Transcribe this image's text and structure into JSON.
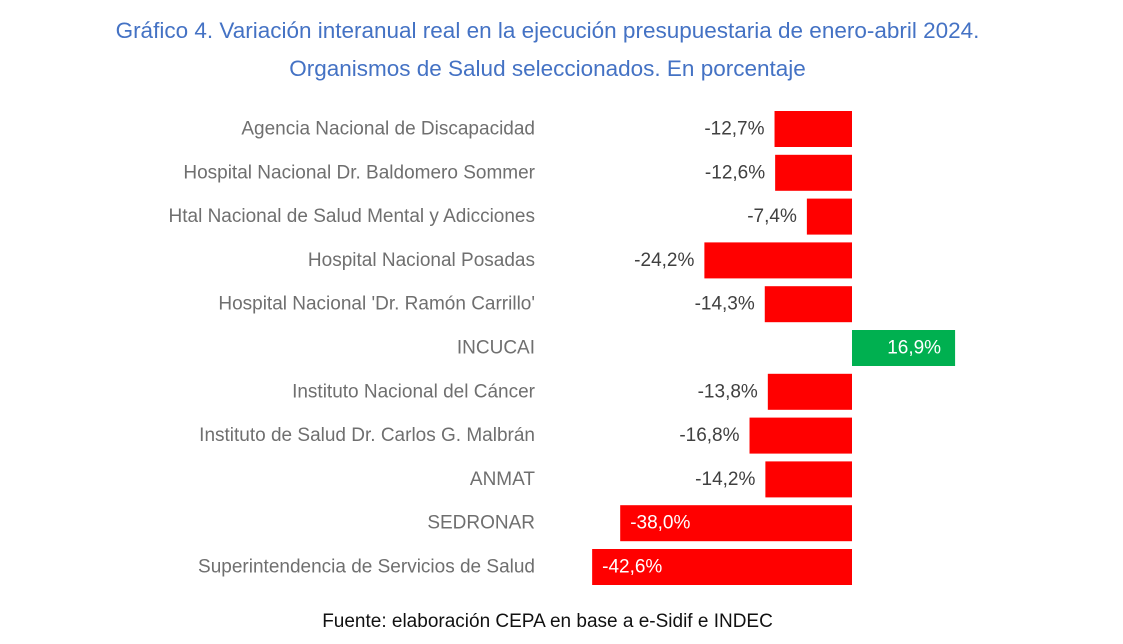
{
  "chart_data": {
    "type": "bar",
    "orientation": "horizontal",
    "title_line1": "Gráfico 4. Variación interanual real en la ejecución presupuestaria de enero-abril 2024.",
    "title_line2": "Organismos de Salud seleccionados. En porcentaje",
    "categories": [
      "Agencia Nacional de Discapacidad",
      "Hospital Nacional Dr. Baldomero Sommer",
      "Htal Nacional de Salud Mental y Adicciones",
      "Hospital Nacional Posadas",
      "Hospital Nacional 'Dr. Ramón Carrillo'",
      "INCUCAI",
      "Instituto Nacional del Cáncer",
      "Instituto de Salud Dr. Carlos G. Malbrán",
      "ANMAT",
      "SEDRONAR",
      "Superintendencia de Servicios de Salud"
    ],
    "values": [
      -12.7,
      -12.6,
      -7.4,
      -24.2,
      -14.3,
      16.9,
      -13.8,
      -16.8,
      -14.2,
      -38.0,
      -42.6
    ],
    "data_labels": [
      "-12,7%",
      "-12,6%",
      "-7,4%",
      "-24,2%",
      "-14,3%",
      "16,9%",
      "-13,8%",
      "-16,8%",
      "-14,2%",
      "-38,0%",
      "-42,6%"
    ],
    "xlim": [
      -45,
      20
    ],
    "colors": {
      "negative": "#FF0000",
      "positive": "#00B050",
      "title": "#4472C4",
      "category_text": "#6f6f6f"
    },
    "grid": false,
    "legend": "none"
  },
  "source": "Fuente: elaboración CEPA en base a e-Sidif e INDEC"
}
